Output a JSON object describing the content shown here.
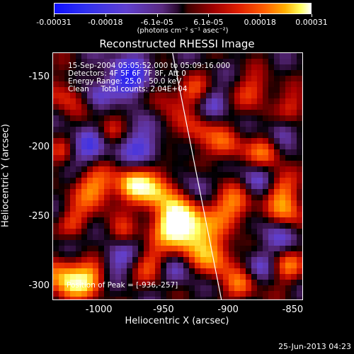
{
  "colorbar": {
    "ticks": [
      "-0.00031",
      "-0.00018",
      "-6.1e-05",
      "6.1e-05",
      "0.00018",
      "0.00031"
    ],
    "units": "(photons cm⁻² s⁻¹ asec⁻²)",
    "scale_colors": [
      "#1010ff",
      "#5a2a80",
      "#000000",
      "#a00000",
      "#ff6000",
      "#ffffff"
    ]
  },
  "title": "Reconstructed RHESSI Image",
  "annotation": {
    "time": "15-Sep-2004 05:05:52.000 to 05:09:16.000",
    "detectors": "Detectors: 4F 5F 6F 7F 8F, Att 0",
    "energy": "Energy Range: 25.0 - 50.0 keV",
    "clean": "Clean     Total counts: 2.04E+04",
    "peak": "Position of Peak = [-936,-257]"
  },
  "chart_data": {
    "type": "heatmap",
    "title": "Reconstructed RHESSI Image",
    "xlabel": "Heliocentric X (arcsec)",
    "ylabel": "Heliocentric Y (arcsec)",
    "xticks": [
      "-1000",
      "-950",
      "-900",
      "-850"
    ],
    "yticks": [
      "-150",
      "-200",
      "-250",
      "-300"
    ],
    "xlim": [
      -1036,
      -842
    ],
    "ylim": [
      -310,
      -132
    ],
    "peak": [
      -936,
      -257
    ],
    "limb_line": [
      [
        -943,
        -132
      ],
      [
        -905,
        -310
      ]
    ]
  },
  "footer": "25-Jun-2013 04:23"
}
